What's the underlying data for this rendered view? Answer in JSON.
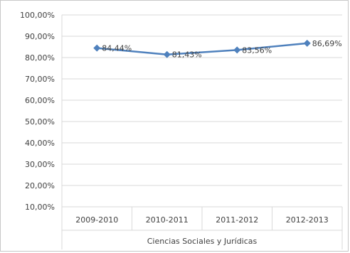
{
  "chart_data": {
    "type": "line",
    "group_label": "Ciencias Sociales y Jurídicas",
    "categories": [
      "2009-2010",
      "2010-2011",
      "2011-2012",
      "2012-2013"
    ],
    "series": [
      {
        "values": [
          84.44,
          81.43,
          83.56,
          86.69
        ],
        "labels": [
          "84,44%",
          "81,43%",
          "83,56%",
          "86,69%"
        ]
      }
    ],
    "y_ticks": [
      "10,00%",
      "20,00%",
      "30,00%",
      "40,00%",
      "50,00%",
      "60,00%",
      "70,00%",
      "80,00%",
      "90,00%",
      "100,00%"
    ],
    "ylim": [
      10,
      100
    ],
    "grid": true,
    "legend": "none",
    "line_color": "#4f81bd",
    "gridline_color": "#d9d9d9"
  }
}
